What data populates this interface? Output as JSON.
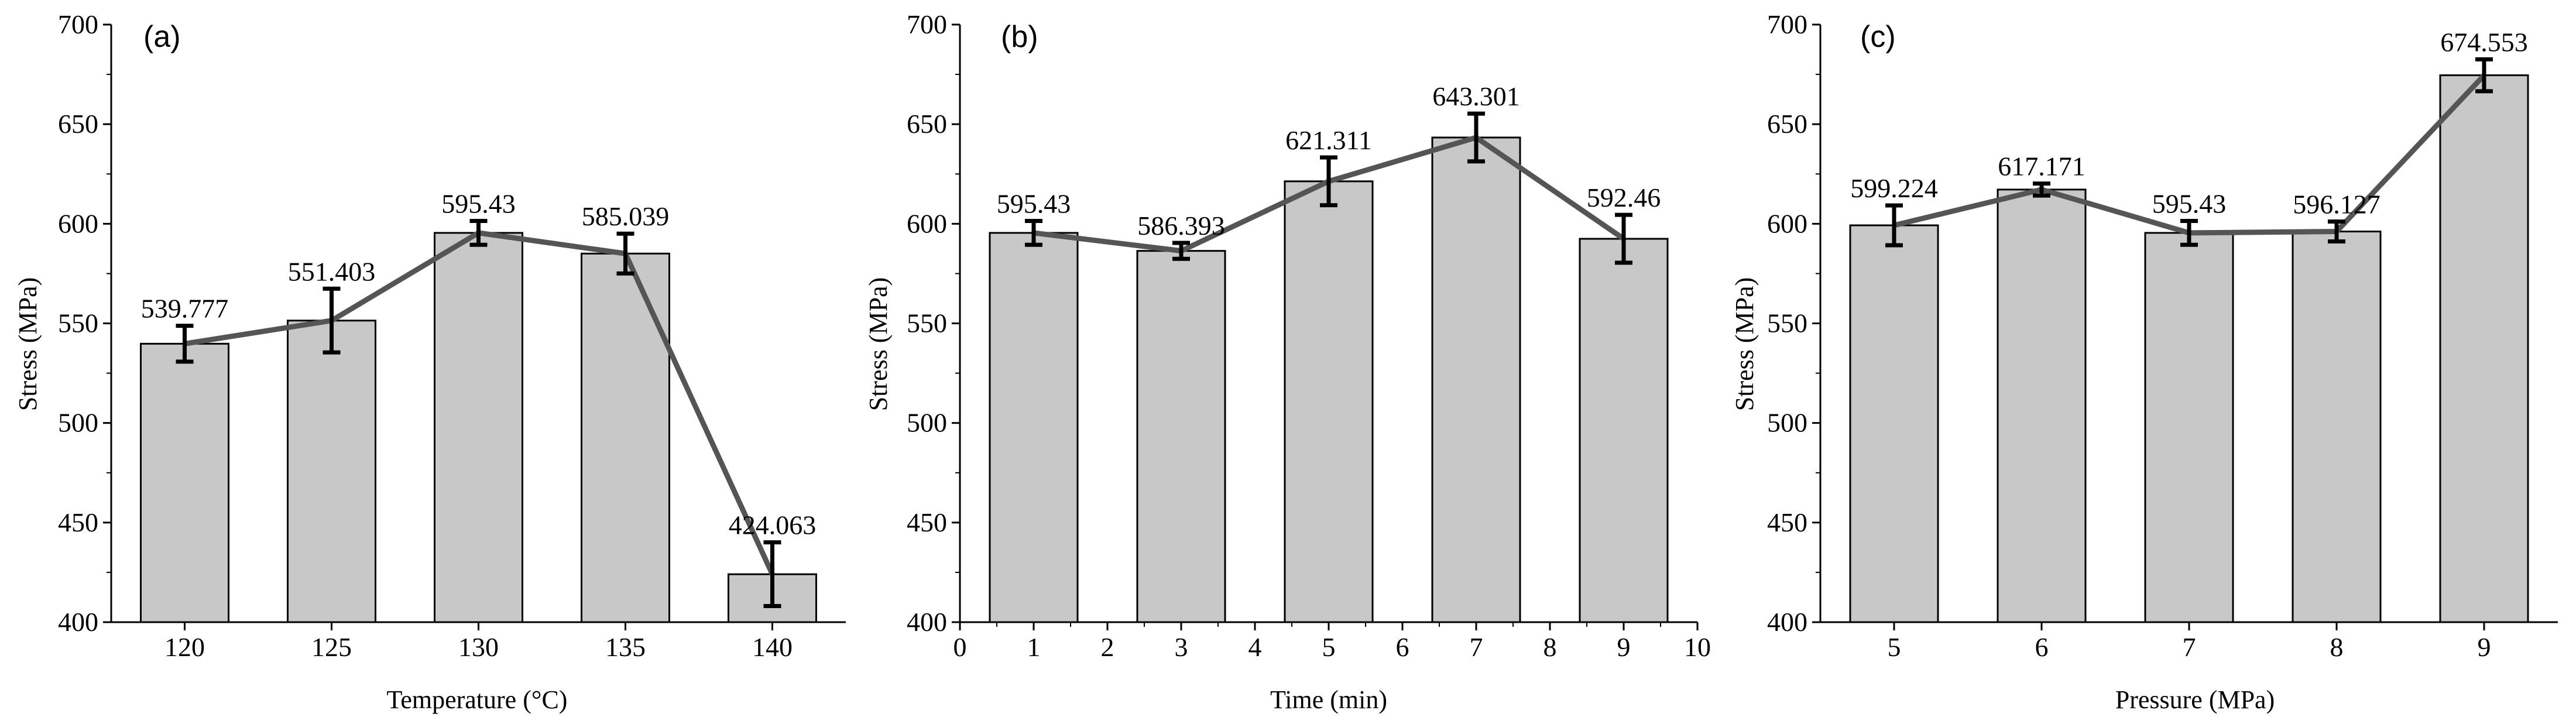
{
  "colors": {
    "bar_fill": "#c8c8c8",
    "bar_stroke": "#000000",
    "line": "#555555",
    "error_bar": "#000000",
    "axis": "#000000"
  },
  "chart_data": [
    {
      "type": "bar",
      "panel_label": "(a)",
      "xlabel": "Temperature (°C)",
      "ylabel": "Stress (MPa)",
      "categories": [
        "120",
        "125",
        "130",
        "135",
        "140"
      ],
      "values": [
        539.777,
        551.403,
        595.43,
        585.039,
        424.063
      ],
      "data_labels": [
        "539.777",
        "551.403",
        "595.43",
        "585.039",
        "424.063"
      ],
      "errors": [
        9,
        16,
        6,
        10,
        16
      ],
      "ylim": [
        400,
        700
      ],
      "yticks": [
        400,
        450,
        500,
        550,
        600,
        650,
        700
      ],
      "overlay": "line connecting bar tops with error bars"
    },
    {
      "type": "bar",
      "panel_label": "(b)",
      "xlabel": "Time (min)",
      "ylabel": "Stress (MPa)",
      "x": [
        1,
        3,
        5,
        7,
        9
      ],
      "values": [
        595.43,
        586.393,
        621.311,
        643.301,
        592.46
      ],
      "data_labels": [
        "595.43",
        "586.393",
        "621.311",
        "643.301",
        "592.46"
      ],
      "errors": [
        6,
        4,
        12,
        12,
        12
      ],
      "xlim": [
        0,
        10
      ],
      "xticks": [
        "0",
        "1",
        "2",
        "3",
        "4",
        "5",
        "6",
        "7",
        "8",
        "9",
        "10"
      ],
      "ylim": [
        400,
        700
      ],
      "yticks": [
        400,
        450,
        500,
        550,
        600,
        650,
        700
      ],
      "overlay": "line connecting bar tops with error bars"
    },
    {
      "type": "bar",
      "panel_label": "(c)",
      "xlabel": "Pressure (MPa)",
      "ylabel": "Stress (MPa)",
      "categories": [
        "5",
        "6",
        "7",
        "8",
        "9"
      ],
      "values": [
        599.224,
        617.171,
        595.43,
        596.127,
        674.553
      ],
      "data_labels": [
        "599.224",
        "617.171",
        "595.43",
        "596.127",
        "674.553"
      ],
      "errors": [
        10,
        3,
        6,
        5,
        8
      ],
      "ylim": [
        400,
        700
      ],
      "yticks": [
        400,
        450,
        500,
        550,
        600,
        650,
        700
      ],
      "overlay": "line connecting bar tops with error bars"
    }
  ]
}
